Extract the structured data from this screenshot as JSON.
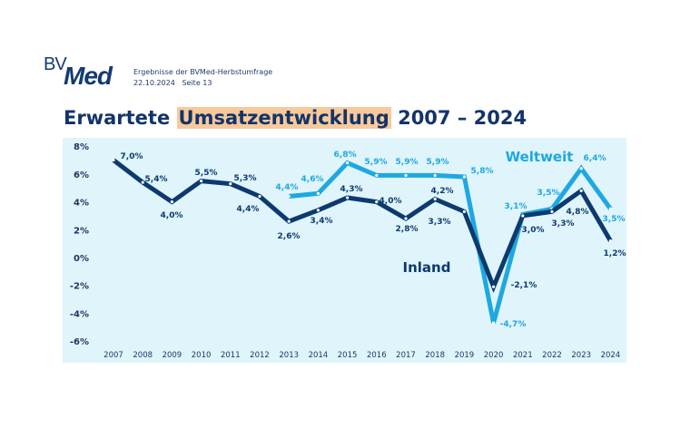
{
  "header": {
    "logo_text": "BVMed",
    "subtitle_line1": "Ergebnisse der BVMed-Herbstumfrage",
    "date": "22.10.2024",
    "page": "Seite 13",
    "title_prefix": "Erwartete",
    "title_highlight": "Umsatzentwicklung",
    "title_suffix": "2007 – 2024"
  },
  "colors": {
    "inland": "#0d3a6e",
    "weltweit": "#1ea8e1",
    "panel": "#dff4fb",
    "highlight": "#f8c99a"
  },
  "chart_data": {
    "type": "line",
    "title": "Erwartete Umsatzentwicklung 2007 – 2024",
    "x": [
      "2007",
      "2008",
      "2009",
      "2010",
      "2011",
      "2012",
      "2013",
      "2014",
      "2015",
      "2016",
      "2017",
      "2018",
      "2019",
      "2020",
      "2021",
      "2022",
      "2023",
      "2024"
    ],
    "ylim": [
      -6,
      8
    ],
    "yticks": [
      "8%",
      "6%",
      "4%",
      "2%",
      "0%",
      "-2%",
      "-4%",
      "-6%"
    ],
    "ytick_values": [
      8,
      6,
      4,
      2,
      0,
      -2,
      -4,
      -6
    ],
    "grid": false,
    "legend": "inline labels",
    "series": [
      {
        "name": "Inland",
        "values": [
          7.0,
          5.4,
          4.0,
          5.5,
          5.3,
          4.4,
          2.6,
          3.4,
          4.3,
          4.0,
          2.8,
          4.2,
          3.3,
          -2.1,
          3.0,
          3.3,
          4.8,
          1.2
        ],
        "labels": [
          "7,0%",
          "5,4%",
          "4,0%",
          "5,5%",
          "5,3%",
          "4,4%",
          "2,6%",
          "3,4%",
          "4,3%",
          "4,0%",
          "2,8%",
          "4,2%",
          "3,3%",
          "-2,1%",
          "3,0%",
          "3,3%",
          "4,8%",
          "1,2%"
        ]
      },
      {
        "name": "Weltweit",
        "values": [
          null,
          null,
          null,
          null,
          null,
          null,
          4.4,
          4.6,
          6.8,
          5.9,
          5.9,
          5.9,
          5.8,
          -4.7,
          3.1,
          3.5,
          6.4,
          3.5
        ],
        "labels": [
          null,
          null,
          null,
          null,
          null,
          null,
          "4,4%",
          "4,6%",
          "6,8%",
          "5,9%",
          "5,9%",
          "5,9%",
          "5,8%",
          "-4,7%",
          "3,1%",
          "3,5%",
          "6,4%",
          "3,5%"
        ]
      }
    ]
  }
}
